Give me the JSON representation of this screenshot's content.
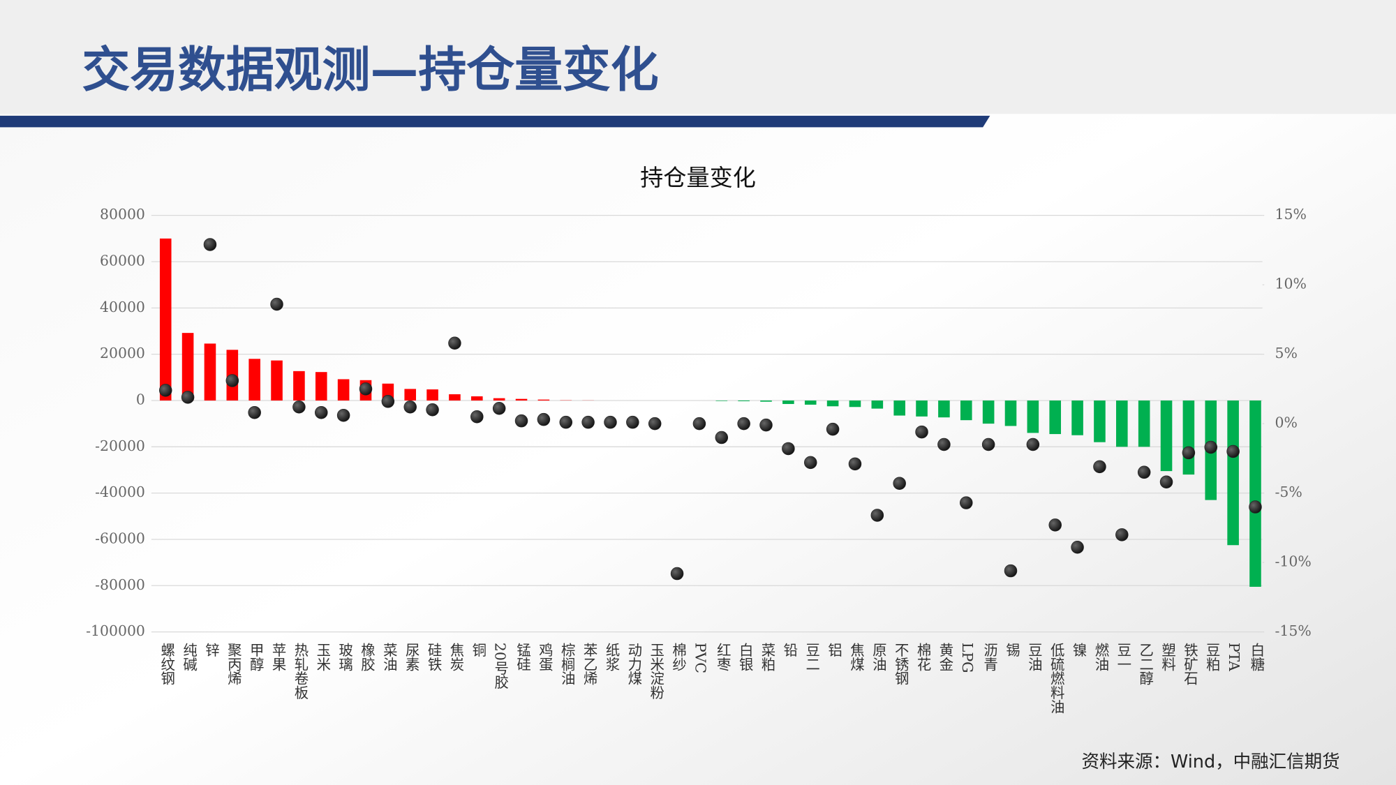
{
  "header": {
    "title": "交易数据观测—持仓量变化"
  },
  "chart_data": {
    "type": "bar",
    "title": "持仓量变化",
    "categories": [
      "螺纹钢",
      "纯碱",
      "锌",
      "聚丙烯",
      "甲醇",
      "苹果",
      "热轧卷板",
      "玉米",
      "玻璃",
      "橡胶",
      "菜油",
      "尿素",
      "硅铁",
      "焦炭",
      "铜",
      "20号胶",
      "锰硅",
      "鸡蛋",
      "棕榈油",
      "苯乙烯",
      "纸浆",
      "动力煤",
      "玉米淀粉",
      "棉纱",
      "PVC",
      "红枣",
      "白银",
      "菜粕",
      "铅",
      "豆二",
      "铝",
      "焦煤",
      "原油",
      "不锈钢",
      "棉花",
      "黄金",
      "LPG",
      "沥青",
      "锡",
      "豆油",
      "低硫燃料油",
      "镍",
      "燃油",
      "豆一",
      "乙二醇",
      "塑料",
      "铁矿石",
      "豆粕",
      "PTA",
      "白糖"
    ],
    "series": [
      {
        "type": "bar",
        "color": "#ff0000",
        "negative_color": "#00b050",
        "values": [
          70000,
          29200,
          24600,
          21900,
          18000,
          17300,
          12700,
          12300,
          9200,
          8800,
          7300,
          5000,
          4800,
          2700,
          1800,
          1000,
          700,
          400,
          100,
          50,
          0,
          0,
          0,
          0,
          0,
          -200,
          -300,
          -500,
          -1500,
          -1800,
          -2500,
          -2800,
          -3500,
          -6500,
          -6900,
          -7300,
          -8500,
          -10000,
          -11000,
          -14000,
          -14500,
          -15000,
          -18000,
          -20000,
          -20000,
          -30500,
          -32000,
          -43000,
          -62500,
          -80500
        ]
      },
      {
        "type": "scatter",
        "axis": "y2",
        "color": "#222222",
        "values": [
          2.4,
          1.9,
          12.9,
          3.1,
          0.8,
          8.6,
          1.2,
          0.8,
          0.6,
          2.5,
          1.6,
          1.2,
          1.0,
          5.8,
          0.5,
          1.1,
          0.2,
          0.3,
          0.1,
          0.1,
          0.1,
          0.1,
          0.0,
          -10.8,
          0.0,
          -1.0,
          0.0,
          -0.1,
          -1.8,
          -2.8,
          -0.4,
          -2.9,
          -6.6,
          -4.3,
          -0.6,
          -1.5,
          -5.7,
          -1.5,
          -10.6,
          -1.5,
          -7.3,
          -8.9,
          -3.1,
          -8.0,
          -3.5,
          -4.2,
          -2.1,
          -1.7,
          -2.0,
          -6.0
        ]
      }
    ],
    "ylim": [
      -100000,
      80000
    ],
    "yticks": [
      -100000,
      -80000,
      -60000,
      -40000,
      -20000,
      0,
      20000,
      40000,
      60000,
      80000
    ],
    "y2lim": [
      -15,
      15
    ],
    "y2ticks": [
      {
        "value": -15,
        "label": "-15%"
      },
      {
        "value": -10,
        "label": "-10%"
      },
      {
        "value": -5,
        "label": "-5%"
      },
      {
        "value": 0,
        "label": "0%"
      },
      {
        "value": 5,
        "label": "5%"
      },
      {
        "value": 10,
        "label": "10%"
      },
      {
        "value": 15,
        "label": "15%"
      }
    ],
    "grid": true
  },
  "footer": {
    "source": "资料来源：Wind，中融汇信期货"
  }
}
